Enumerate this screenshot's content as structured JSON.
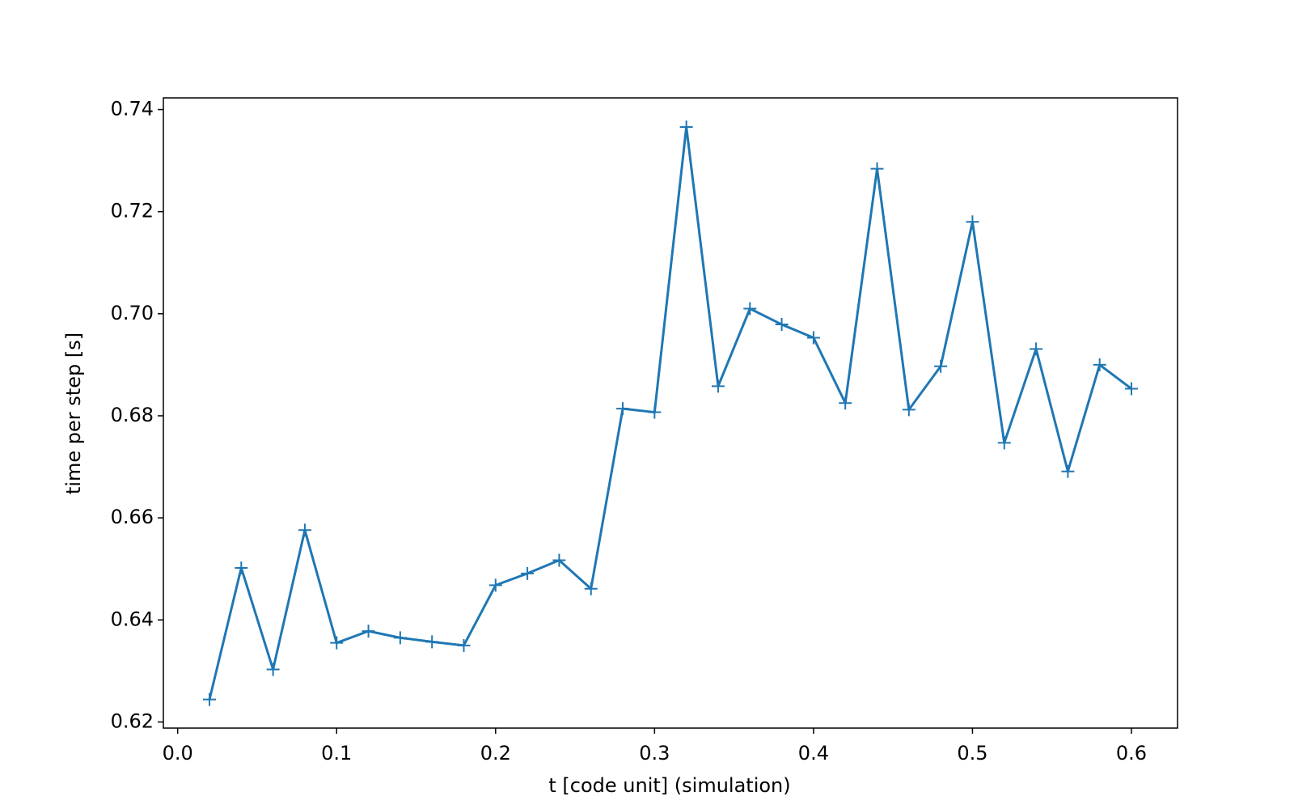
{
  "chart_data": {
    "type": "line",
    "xlabel": "t [code unit] (simulation)",
    "ylabel": "time per step [s]",
    "color": "#1f77b4",
    "x": [
      0.02,
      0.04,
      0.06,
      0.08,
      0.1,
      0.12,
      0.14,
      0.16,
      0.18,
      0.2,
      0.22,
      0.24,
      0.26,
      0.28,
      0.3,
      0.32,
      0.34,
      0.36,
      0.38,
      0.4,
      0.42,
      0.44,
      0.46,
      0.48,
      0.5,
      0.52,
      0.54,
      0.56,
      0.58,
      0.6
    ],
    "values": [
      0.6244,
      0.6502,
      0.6303,
      0.6576,
      0.6355,
      0.6378,
      0.6365,
      0.6357,
      0.635,
      0.6468,
      0.6491,
      0.6517,
      0.6461,
      0.6814,
      0.6807,
      0.7366,
      0.6858,
      0.701,
      0.6979,
      0.6953,
      0.6825,
      0.7284,
      0.6812,
      0.6897,
      0.718,
      0.6747,
      0.6931,
      0.6691,
      0.69,
      0.6853
    ],
    "xlim": [
      -0.009,
      0.629
    ],
    "ylim": [
      0.6188,
      0.7423
    ],
    "xticks": [
      {
        "value": 0,
        "label": "0.0"
      },
      0.1,
      0.2,
      0.3,
      0.4,
      0.5,
      0.6
    ],
    "yticks": [
      0.62,
      0.64,
      0.66,
      0.68,
      {
        "value": 0.7,
        "label": "0.70"
      },
      0.72,
      0.74
    ]
  }
}
